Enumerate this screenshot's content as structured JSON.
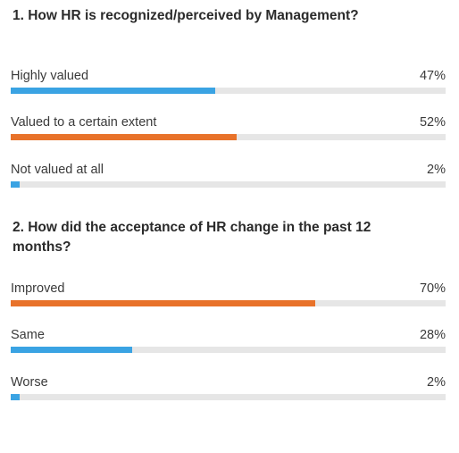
{
  "colors": {
    "blue": "#3aa3e3",
    "orange": "#e8722a",
    "track": "#e6e6e6"
  },
  "chart_data": [
    {
      "type": "bar",
      "title": "1. How HR is recognized/perceived by Management?",
      "categories": [
        "Highly valued",
        "Valued to a certain extent",
        "Not valued at all"
      ],
      "values": [
        47,
        52,
        2
      ],
      "value_labels": [
        "47%",
        "52%",
        "2%"
      ],
      "bar_colors": [
        "#3aa3e3",
        "#e8722a",
        "#3aa3e3"
      ],
      "xlim": [
        0,
        100
      ]
    },
    {
      "type": "bar",
      "title": "2. How did the acceptance of HR change in the past 12 months?",
      "categories": [
        "Improved",
        "Same",
        "Worse"
      ],
      "values": [
        70,
        28,
        2
      ],
      "value_labels": [
        "70%",
        "28%",
        "2%"
      ],
      "bar_colors": [
        "#e8722a",
        "#3aa3e3",
        "#3aa3e3"
      ],
      "xlim": [
        0,
        100
      ]
    }
  ]
}
